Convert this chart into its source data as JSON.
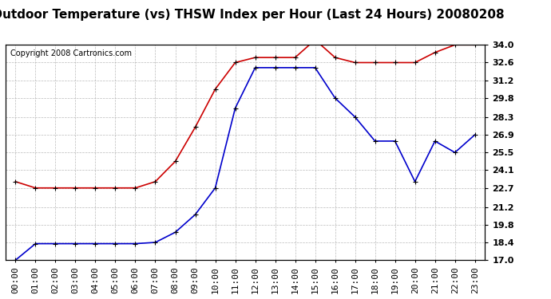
{
  "title": "Outdoor Temperature (vs) THSW Index per Hour (Last 24 Hours) 20080208",
  "copyright": "Copyright 2008 Cartronics.com",
  "hours": [
    "00:00",
    "01:00",
    "02:00",
    "03:00",
    "04:00",
    "05:00",
    "06:00",
    "07:00",
    "08:00",
    "09:00",
    "10:00",
    "11:00",
    "12:00",
    "13:00",
    "14:00",
    "15:00",
    "16:00",
    "17:00",
    "18:00",
    "19:00",
    "20:00",
    "21:00",
    "22:00",
    "23:00"
  ],
  "temp_blue": [
    17.0,
    18.3,
    18.3,
    18.3,
    18.3,
    18.3,
    18.3,
    18.4,
    19.2,
    20.6,
    22.7,
    29.0,
    32.2,
    32.2,
    32.2,
    32.2,
    29.8,
    28.3,
    26.4,
    26.4,
    23.2,
    26.4,
    25.5,
    26.9
  ],
  "thsw_red": [
    23.2,
    22.7,
    22.7,
    22.7,
    22.7,
    22.7,
    22.7,
    23.2,
    24.8,
    27.5,
    30.5,
    32.6,
    33.0,
    33.0,
    33.0,
    34.4,
    33.0,
    32.6,
    32.6,
    32.6,
    32.6,
    33.4,
    34.0,
    34.0
  ],
  "ylim": [
    17.0,
    34.0
  ],
  "yticks": [
    17.0,
    18.4,
    19.8,
    21.2,
    22.7,
    24.1,
    25.5,
    26.9,
    28.3,
    29.8,
    31.2,
    32.6,
    34.0
  ],
  "blue_color": "#0000cc",
  "red_color": "#cc0000",
  "grid_color": "#aaaaaa",
  "bg_color": "#ffffff",
  "title_fontsize": 11,
  "copyright_fontsize": 7,
  "tick_fontsize": 8
}
